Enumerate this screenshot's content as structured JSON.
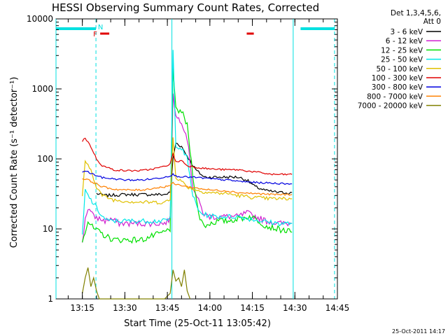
{
  "chart_data": {
    "type": "line",
    "title": "HESSI Observing Summary Count Rates, Corrected",
    "xlabel": "Start Time (25-Oct-11 13:05:42)",
    "ylabel": "Corrected Count Rate (s⁻¹ detector⁻¹)",
    "y_scale": "log",
    "ylim": [
      1,
      10000
    ],
    "xlim_minutes": [
      5.7,
      105.0
    ],
    "x_ticks": [
      {
        "label": "13:15",
        "min": 15
      },
      {
        "label": "13:30",
        "min": 30
      },
      {
        "label": "13:45",
        "min": 45
      },
      {
        "label": "14:00",
        "min": 60
      },
      {
        "label": "14:15",
        "min": 75
      },
      {
        "label": "14:30",
        "min": 90
      },
      {
        "label": "14:45",
        "min": 105
      }
    ],
    "y_ticks": [
      {
        "label": "1",
        "v": 1
      },
      {
        "label": "10",
        "v": 10
      },
      {
        "label": "100",
        "v": 100
      },
      {
        "label": "1000",
        "v": 1000
      },
      {
        "label": "10000",
        "v": 10000
      }
    ],
    "legend": {
      "position": "right",
      "header": [
        "Det 1,3,4,5,6,",
        "Att 0"
      ]
    },
    "markers": {
      "N": {
        "label": "N",
        "min": 20.5,
        "color": "#00e0e0"
      },
      "F": {
        "label": "F",
        "min": 20.3,
        "color": "#e00000"
      }
    },
    "flags": {
      "night_bars": [
        [
          5.7,
          19.8
        ],
        [
          92.0,
          104.0
        ]
      ],
      "flag_bars": [
        [
          21.3,
          24.5
        ],
        [
          73.0,
          75.5
        ]
      ],
      "saa_vlines": [
        5.7,
        19.8,
        46.6,
        89.4,
        104.0
      ]
    },
    "series": [
      {
        "name": "3 - 6 keV",
        "color": "#000000",
        "points": [
          [
            20,
            32
          ],
          [
            23,
            30
          ],
          [
            30,
            31
          ],
          [
            40,
            31
          ],
          [
            44,
            31
          ],
          [
            46,
            33
          ],
          [
            47,
            100
          ],
          [
            48,
            170
          ],
          [
            50,
            150
          ],
          [
            52,
            110
          ],
          [
            55,
            70
          ],
          [
            58,
            55
          ],
          [
            62,
            55
          ],
          [
            66,
            55
          ],
          [
            70,
            55
          ],
          [
            73,
            50
          ],
          [
            76,
            40
          ],
          [
            80,
            35
          ],
          [
            85,
            33
          ],
          [
            89,
            33
          ]
        ]
      },
      {
        "name": "6 - 12 keV",
        "color": "#d020d0",
        "points": [
          [
            15,
            6
          ],
          [
            16,
            14
          ],
          [
            17,
            20
          ],
          [
            19,
            15
          ],
          [
            21,
            14
          ],
          [
            23,
            13
          ],
          [
            25,
            14
          ],
          [
            28,
            12
          ],
          [
            32,
            12
          ],
          [
            40,
            12
          ],
          [
            44,
            12
          ],
          [
            46,
            14
          ],
          [
            47,
            900
          ],
          [
            48,
            400
          ],
          [
            50,
            350
          ],
          [
            52,
            200
          ],
          [
            54,
            40
          ],
          [
            56,
            25
          ],
          [
            58,
            16
          ],
          [
            60,
            15
          ],
          [
            64,
            15
          ],
          [
            70,
            15
          ],
          [
            73,
            17
          ],
          [
            76,
            15
          ],
          [
            80,
            13
          ],
          [
            84,
            12
          ],
          [
            89,
            12
          ]
        ]
      },
      {
        "name": "12 - 25 keV",
        "color": "#00e000",
        "points": [
          [
            15,
            7
          ],
          [
            17,
            13
          ],
          [
            19,
            10
          ],
          [
            21,
            9
          ],
          [
            23,
            8
          ],
          [
            26,
            7
          ],
          [
            30,
            7
          ],
          [
            36,
            7
          ],
          [
            40,
            8
          ],
          [
            44,
            9
          ],
          [
            46,
            10
          ],
          [
            47,
            1800
          ],
          [
            48,
            500
          ],
          [
            50,
            480
          ],
          [
            52,
            300
          ],
          [
            54,
            60
          ],
          [
            56,
            16
          ],
          [
            58,
            11
          ],
          [
            60,
            12
          ],
          [
            63,
            13
          ],
          [
            66,
            13
          ],
          [
            70,
            14
          ],
          [
            74,
            15
          ],
          [
            76,
            14
          ],
          [
            80,
            11
          ],
          [
            84,
            10
          ],
          [
            89,
            9
          ]
        ]
      },
      {
        "name": "25 - 50 keV",
        "color": "#00e8e8",
        "points": [
          [
            15,
            8
          ],
          [
            16,
            35
          ],
          [
            18,
            26
          ],
          [
            20,
            20
          ],
          [
            22,
            15
          ],
          [
            24,
            13
          ],
          [
            28,
            13
          ],
          [
            34,
            13
          ],
          [
            40,
            13
          ],
          [
            44,
            13
          ],
          [
            46,
            14
          ],
          [
            47,
            3500
          ],
          [
            48,
            160
          ],
          [
            50,
            140
          ],
          [
            52,
            100
          ],
          [
            54,
            30
          ],
          [
            56,
            18
          ],
          [
            58,
            16
          ],
          [
            62,
            15
          ],
          [
            66,
            15
          ],
          [
            70,
            15
          ],
          [
            74,
            14
          ],
          [
            78,
            13
          ],
          [
            84,
            12
          ],
          [
            89,
            12
          ]
        ]
      },
      {
        "name": "50 - 100 keV",
        "color": "#e0c000",
        "points": [
          [
            15,
            30
          ],
          [
            16,
            90
          ],
          [
            18,
            70
          ],
          [
            20,
            40
          ],
          [
            22,
            30
          ],
          [
            26,
            26
          ],
          [
            30,
            25
          ],
          [
            36,
            24
          ],
          [
            40,
            24
          ],
          [
            44,
            24
          ],
          [
            46,
            26
          ],
          [
            47,
            200
          ],
          [
            48,
            55
          ],
          [
            50,
            48
          ],
          [
            52,
            40
          ],
          [
            56,
            35
          ],
          [
            60,
            33
          ],
          [
            66,
            32
          ],
          [
            70,
            30
          ],
          [
            76,
            28
          ],
          [
            82,
            27
          ],
          [
            89,
            27
          ]
        ]
      },
      {
        "name": "100 - 300 keV",
        "color": "#e00000",
        "points": [
          [
            15,
            180
          ],
          [
            16,
            200
          ],
          [
            18,
            150
          ],
          [
            20,
            100
          ],
          [
            22,
            80
          ],
          [
            26,
            70
          ],
          [
            30,
            68
          ],
          [
            36,
            68
          ],
          [
            40,
            72
          ],
          [
            44,
            78
          ],
          [
            46,
            85
          ],
          [
            47,
            120
          ],
          [
            48,
            90
          ],
          [
            50,
            95
          ],
          [
            52,
            80
          ],
          [
            56,
            75
          ],
          [
            60,
            72
          ],
          [
            66,
            70
          ],
          [
            70,
            70
          ],
          [
            76,
            65
          ],
          [
            82,
            60
          ],
          [
            89,
            60
          ]
        ]
      },
      {
        "name": "300 - 800 keV",
        "color": "#0000e0",
        "points": [
          [
            15,
            65
          ],
          [
            16,
            68
          ],
          [
            18,
            62
          ],
          [
            20,
            58
          ],
          [
            22,
            54
          ],
          [
            26,
            52
          ],
          [
            30,
            50
          ],
          [
            36,
            50
          ],
          [
            40,
            52
          ],
          [
            44,
            55
          ],
          [
            46,
            58
          ],
          [
            47,
            60
          ],
          [
            48,
            57
          ],
          [
            50,
            56
          ],
          [
            52,
            55
          ],
          [
            56,
            54
          ],
          [
            60,
            52
          ],
          [
            66,
            50
          ],
          [
            70,
            48
          ],
          [
            76,
            46
          ],
          [
            82,
            45
          ],
          [
            89,
            44
          ]
        ]
      },
      {
        "name": "800 - 7000 keV",
        "color": "#ff8000",
        "points": [
          [
            15,
            52
          ],
          [
            16,
            52
          ],
          [
            18,
            48
          ],
          [
            20,
            44
          ],
          [
            22,
            40
          ],
          [
            26,
            37
          ],
          [
            30,
            36
          ],
          [
            36,
            36
          ],
          [
            40,
            38
          ],
          [
            44,
            40
          ],
          [
            46,
            42
          ],
          [
            47,
            45
          ],
          [
            48,
            43
          ],
          [
            50,
            42
          ],
          [
            52,
            40
          ],
          [
            56,
            38
          ],
          [
            60,
            36
          ],
          [
            66,
            35
          ],
          [
            70,
            33
          ],
          [
            76,
            32
          ],
          [
            82,
            31
          ],
          [
            89,
            31
          ]
        ]
      },
      {
        "name": "7000 - 20000 keV",
        "color": "#808000",
        "points": [
          [
            15,
            1.2
          ],
          [
            16,
            2.0
          ],
          [
            17,
            2.8
          ],
          [
            18,
            1.5
          ],
          [
            19,
            2.0
          ],
          [
            20,
            1.3
          ],
          [
            21,
            1.0
          ],
          [
            44,
            1.0
          ],
          [
            46,
            1.2
          ],
          [
            47,
            2.6
          ],
          [
            48,
            1.8
          ],
          [
            49,
            2.0
          ],
          [
            50,
            1.5
          ],
          [
            51,
            2.6
          ],
          [
            52,
            1.3
          ],
          [
            53,
            1.0
          ]
        ]
      }
    ]
  },
  "footer": {
    "timestamp": "25-Oct-2011 14:17"
  }
}
